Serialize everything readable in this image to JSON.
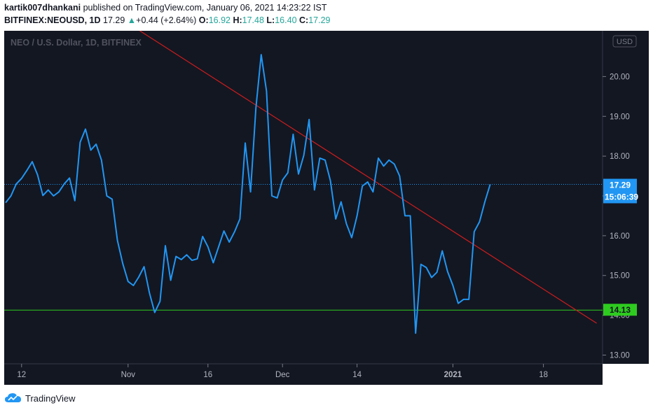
{
  "header": {
    "author": "kartik007dhankani",
    "published_text": "published on TradingView.com, January 06, 2021 14:23:22 IST",
    "symbol": "BITFINEX:NEOUSD, 1D",
    "last": "17.29",
    "change": "+0.44 (+2.64%)",
    "open_label": "O:",
    "open_value": "16.92",
    "high_label": "H:",
    "high_value": "17.48",
    "low_label": "L:",
    "low_value": "16.40",
    "close_label": "C:",
    "close_value": "17.29"
  },
  "footer": {
    "brand": "TradingView"
  },
  "chart_data": {
    "type": "line",
    "title": "NEO / U.S. Dollar, 1D, BITFINEX",
    "currency_label": "USD",
    "x_tick_labels": [
      {
        "label": "12",
        "index": 3
      },
      {
        "label": "Nov",
        "index": 23
      },
      {
        "label": "16",
        "index": 38
      },
      {
        "label": "Dec",
        "index": 52
      },
      {
        "label": "14",
        "index": 66
      },
      {
        "label": "2021",
        "index": 84
      },
      {
        "label": "18",
        "index": 101
      }
    ],
    "y_ticks": [
      13.0,
      14.0,
      15.0,
      16.0,
      17.0,
      18.0,
      19.0,
      20.0
    ],
    "y_tick_labels": [
      "13.00",
      "14.00",
      "15.00",
      "16.00",
      "17.00",
      "18.00",
      "19.00",
      "20.00"
    ],
    "ylim": [
      12.78,
      21.15
    ],
    "x_count": 112,
    "series": [
      {
        "color": "#2196f3",
        "values": [
          16.83,
          17.0,
          17.3,
          17.44,
          17.64,
          17.86,
          17.53,
          17.01,
          17.15,
          17.0,
          17.1,
          17.3,
          17.45,
          16.88,
          18.35,
          18.68,
          18.15,
          18.3,
          17.9,
          17.0,
          16.92,
          15.88,
          15.3,
          14.85,
          14.75,
          14.96,
          15.22,
          14.57,
          14.07,
          14.35,
          15.75,
          14.88,
          15.48,
          15.4,
          15.52,
          15.38,
          15.42,
          15.98,
          15.72,
          15.32,
          15.72,
          16.12,
          15.84,
          16.1,
          16.42,
          18.33,
          17.1,
          19.2,
          20.55,
          19.63,
          17.0,
          16.95,
          17.4,
          17.58,
          18.55,
          17.55,
          18.02,
          18.92,
          17.15,
          17.95,
          17.9,
          17.38,
          16.42,
          16.85,
          16.3,
          15.95,
          16.5,
          17.25,
          17.35,
          17.1,
          17.95,
          17.75,
          17.9,
          17.8,
          17.5,
          16.5,
          16.5,
          13.55,
          15.28,
          15.2,
          14.95,
          15.08,
          15.62,
          15.1,
          14.75,
          14.3,
          14.4,
          14.4,
          16.1,
          16.35,
          16.85,
          17.29
        ]
      }
    ],
    "trendline": {
      "color": "#d11c1c",
      "from": {
        "index": 25.2,
        "value": 21.15
      },
      "to": {
        "index": 111,
        "value": 13.8
      }
    },
    "support": {
      "value": 14.13,
      "label": "14.13",
      "color": "#2ecc1f"
    },
    "last_price": {
      "value": 17.29,
      "label": "17.29",
      "countdown": "15:06:39"
    }
  }
}
